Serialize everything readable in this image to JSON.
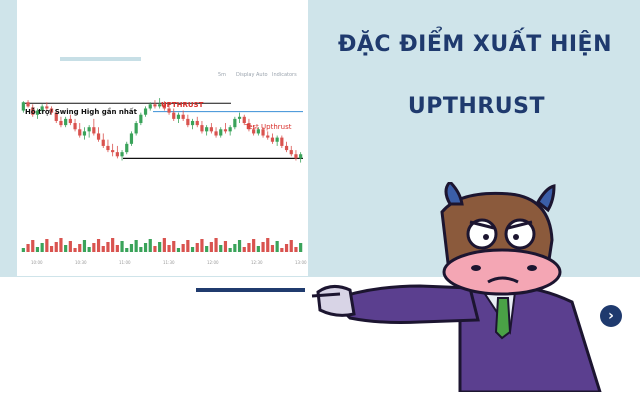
{
  "page": {
    "title_line1": "ĐẶC ĐIỂM XUẤT HIỆN",
    "title_line2": "UPTHRUST",
    "toolbar": [
      "5m",
      "Display",
      "Auto",
      "Indicators"
    ]
  },
  "chart_data": {
    "type": "candlestick",
    "annotations": {
      "support": "Hỗ trợ/ Swing High gần nhất",
      "upthrust": "UPTHRUST",
      "test": "Test Upthrust"
    },
    "x_tick_labels": [
      "10:00",
      "10:30",
      "11:00",
      "11:30",
      "12:00",
      "12:30",
      "13:00"
    ],
    "ylim": [
      0,
      100
    ],
    "levels": {
      "resistance": 93,
      "test_line": 85,
      "support": 40
    },
    "candles": [
      [
        86,
        95,
        84,
        94
      ],
      [
        94,
        96,
        89,
        90
      ],
      [
        89,
        92,
        80,
        82
      ],
      [
        82,
        88,
        78,
        86
      ],
      [
        86,
        92,
        84,
        90
      ],
      [
        90,
        94,
        86,
        88
      ],
      [
        88,
        90,
        82,
        84
      ],
      [
        84,
        86,
        74,
        76
      ],
      [
        76,
        80,
        70,
        72
      ],
      [
        72,
        80,
        70,
        78
      ],
      [
        78,
        82,
        72,
        74
      ],
      [
        74,
        78,
        66,
        68
      ],
      [
        68,
        74,
        60,
        62
      ],
      [
        62,
        70,
        58,
        66
      ],
      [
        66,
        72,
        60,
        70
      ],
      [
        70,
        78,
        62,
        64
      ],
      [
        64,
        70,
        56,
        58
      ],
      [
        58,
        64,
        50,
        52
      ],
      [
        52,
        58,
        46,
        48
      ],
      [
        48,
        54,
        42,
        46
      ],
      [
        46,
        52,
        40,
        42
      ],
      [
        42,
        48,
        38,
        46
      ],
      [
        46,
        56,
        44,
        54
      ],
      [
        54,
        66,
        52,
        64
      ],
      [
        64,
        76,
        62,
        74
      ],
      [
        74,
        84,
        72,
        82
      ],
      [
        82,
        90,
        80,
        88
      ],
      [
        88,
        94,
        86,
        92
      ],
      [
        92,
        96,
        88,
        90
      ],
      [
        90,
        98,
        88,
        92
      ],
      [
        92,
        95,
        86,
        88
      ],
      [
        88,
        92,
        82,
        84
      ],
      [
        84,
        88,
        76,
        78
      ],
      [
        78,
        84,
        74,
        82
      ],
      [
        82,
        86,
        76,
        78
      ],
      [
        78,
        82,
        70,
        72
      ],
      [
        72,
        78,
        68,
        76
      ],
      [
        76,
        80,
        70,
        72
      ],
      [
        72,
        76,
        64,
        66
      ],
      [
        66,
        72,
        62,
        70
      ],
      [
        70,
        74,
        64,
        66
      ],
      [
        66,
        70,
        60,
        62
      ],
      [
        62,
        70,
        60,
        68
      ],
      [
        68,
        74,
        64,
        66
      ],
      [
        66,
        72,
        62,
        70
      ],
      [
        70,
        80,
        68,
        78
      ],
      [
        78,
        84,
        74,
        80
      ],
      [
        80,
        82,
        72,
        74
      ],
      [
        74,
        78,
        66,
        68
      ],
      [
        68,
        72,
        62,
        64
      ],
      [
        64,
        70,
        62,
        68
      ],
      [
        68,
        70,
        60,
        62
      ],
      [
        62,
        66,
        58,
        60
      ],
      [
        60,
        64,
        54,
        56
      ],
      [
        56,
        62,
        52,
        60
      ],
      [
        60,
        62,
        50,
        52
      ],
      [
        52,
        56,
        46,
        48
      ],
      [
        48,
        52,
        42,
        44
      ],
      [
        44,
        48,
        38,
        40
      ],
      [
        40,
        46,
        36,
        44
      ]
    ]
  }
}
